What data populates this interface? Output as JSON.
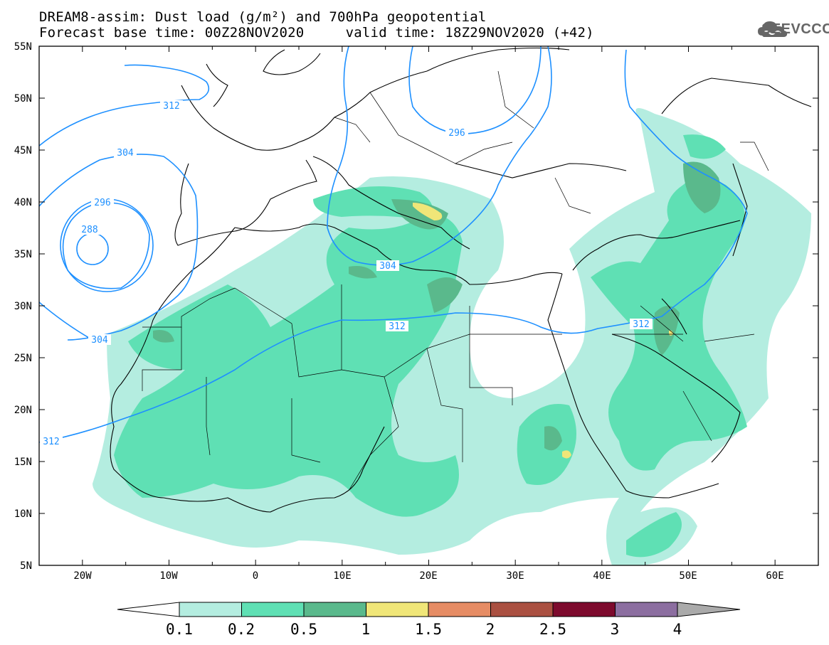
{
  "header": {
    "title_line1": "DREAM8-assim: Dust load (g/m²) and 700hPa geopotential",
    "title_line2": "Forecast base time: 00Z28NOV2020     valid time: 18Z29NOV2020 (+42)"
  },
  "logo": {
    "text": "SEEVCCC",
    "icon": "cloud-icon"
  },
  "map": {
    "lon_range": [
      -25,
      65
    ],
    "lat_range": [
      5,
      55
    ],
    "lat_labels": [
      "55N",
      "50N",
      "45N",
      "40N",
      "35N",
      "30N",
      "25N",
      "20N",
      "15N",
      "10N",
      "5N"
    ],
    "lon_labels": [
      "20W",
      "10W",
      "0",
      "10E",
      "20E",
      "30E",
      "40E",
      "50E",
      "60E"
    ],
    "contour_labels": [
      "312",
      "304",
      "296",
      "288",
      "304",
      "296",
      "304",
      "312",
      "312",
      "312"
    ],
    "contour_color": "#1e90ff"
  },
  "colorbar": {
    "ticks": [
      "0.1",
      "0.2",
      "0.5",
      "1",
      "1.5",
      "2",
      "2.5",
      "3",
      "4"
    ],
    "colors": [
      "#ffffff",
      "#b4ede0",
      "#5fe0b4",
      "#5ab98c",
      "#f0e678",
      "#e68c64",
      "#aa5041",
      "#7d0a2d",
      "#8c6ea0",
      "#aaaaaa"
    ]
  }
}
